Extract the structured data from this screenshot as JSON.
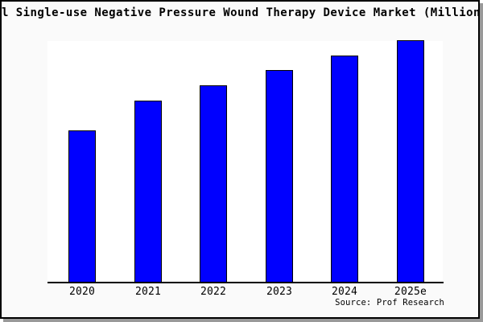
{
  "colors": {
    "page_bg": "#ffffff",
    "chart_bg": "#fafafa",
    "plot_bg": "#ffffff",
    "frame_border": "#000000",
    "frame_shadow": "#999999",
    "bar_fill": "#0000ff",
    "bar_border": "#000000",
    "axis": "#000000",
    "text": "#000000"
  },
  "chart_data": {
    "type": "bar",
    "title": "l Single-use Negative Pressure Wound Therapy Device Market (Million",
    "title_note": "title is clipped at both left and right edges of the image",
    "categories": [
      "2020",
      "2021",
      "2022",
      "2023",
      "2024",
      "2025e"
    ],
    "values": [
      62.8,
      75.1,
      81.4,
      87.7,
      93.7,
      100
    ],
    "value_unit": "percent of tallest bar; no y-axis scale or tick labels are shown",
    "xlabel": "",
    "ylabel": "",
    "ylim": [
      0,
      100
    ],
    "grid": false,
    "legend": "none",
    "source": "Source: Prof Research"
  }
}
